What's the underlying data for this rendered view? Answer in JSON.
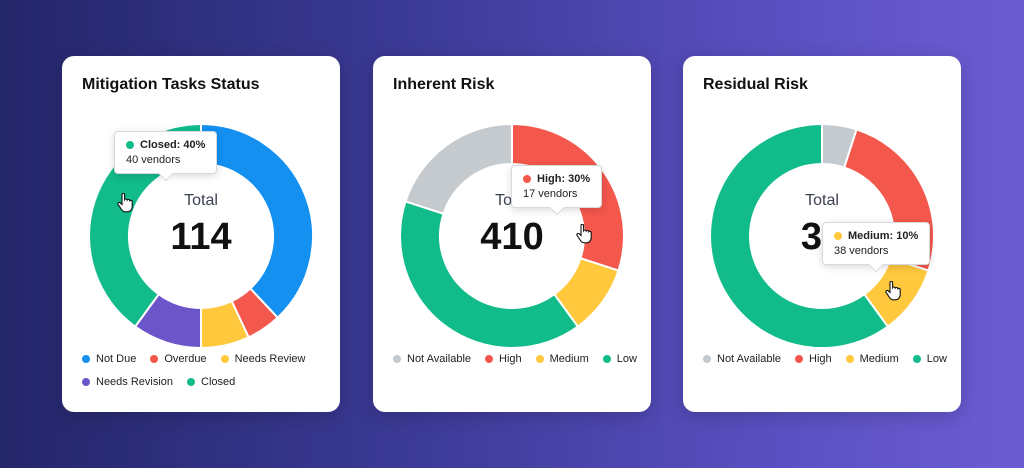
{
  "chart_data": [
    {
      "type": "pie",
      "variant": "donut",
      "title": "Mitigation Tasks Status",
      "center_label": "Total",
      "center_value": "114",
      "start": "top",
      "categories": [
        "Not Due",
        "Overdue",
        "Needs Review",
        "Needs Revision",
        "Closed"
      ],
      "values": [
        38,
        5,
        7,
        10,
        40
      ],
      "unit": "percent",
      "colors": [
        "#1490f0",
        "#f4574c",
        "#ffc83d",
        "#6b55c9",
        "#12bb8a"
      ],
      "legend": "bottom",
      "tooltip": {
        "series": "Closed",
        "label": "Closed: 40%",
        "detail": "40 vendors",
        "color": "#12bb8a"
      }
    },
    {
      "type": "pie",
      "variant": "donut",
      "title": "Inherent Risk",
      "center_label": "Total",
      "center_value": "410",
      "start": "top",
      "categories": [
        "Not Available",
        "High",
        "Medium",
        "Low"
      ],
      "values": [
        20,
        30,
        10,
        40
      ],
      "unit": "percent",
      "colors": [
        "#c5cace",
        "#f4574c",
        "#ffc83d",
        "#12bb8a"
      ],
      "clockwise_order": [
        "High",
        "Medium",
        "Low",
        "Not Available"
      ],
      "legend": "bottom",
      "tooltip": {
        "series": "High",
        "label": "High: 30%",
        "detail": "17 vendors",
        "color": "#f4574c"
      }
    },
    {
      "type": "pie",
      "variant": "donut",
      "title": "Residual Risk",
      "center_label": "Total",
      "center_value": "36",
      "start": "top",
      "categories": [
        "Not Available",
        "High",
        "Medium",
        "Low"
      ],
      "values": [
        5,
        25,
        10,
        60
      ],
      "unit": "percent",
      "colors": [
        "#c5cace",
        "#f4574c",
        "#ffc83d",
        "#12bb8a"
      ],
      "clockwise_order": [
        "Not Available",
        "High",
        "Medium",
        "Low"
      ],
      "legend": "bottom",
      "tooltip": {
        "series": "Medium",
        "label": "Medium: 10%",
        "detail": "38 vendors",
        "color": "#ffc83d"
      }
    }
  ],
  "cursor_icon": "hand-pointer-icon"
}
